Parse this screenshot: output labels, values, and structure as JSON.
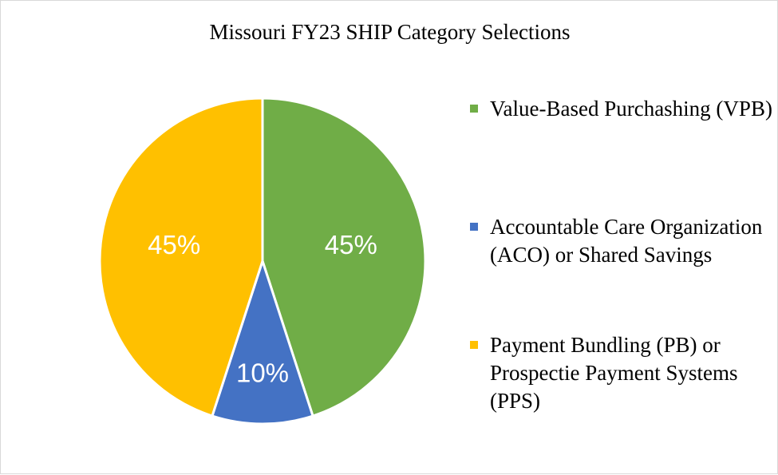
{
  "chart_data": {
    "type": "pie",
    "title": "Missouri FY23 SHIP Category Selections",
    "slices": [
      {
        "label": "Value-Based Purchashing (VPB)",
        "value": 45,
        "display": "45%",
        "color": "#70AD47"
      },
      {
        "label": "Accountable Care Organization (ACO) or Shared Savings",
        "value": 10,
        "display": "10%",
        "color": "#4472C4"
      },
      {
        "label": "Payment Bundling (PB) or Prospectie Payment Systems (PPS)",
        "value": 45,
        "display": "45%",
        "color": "#FFC000"
      }
    ],
    "start_angle": "12 o'clock",
    "direction": "clockwise",
    "legend_position": "right"
  }
}
